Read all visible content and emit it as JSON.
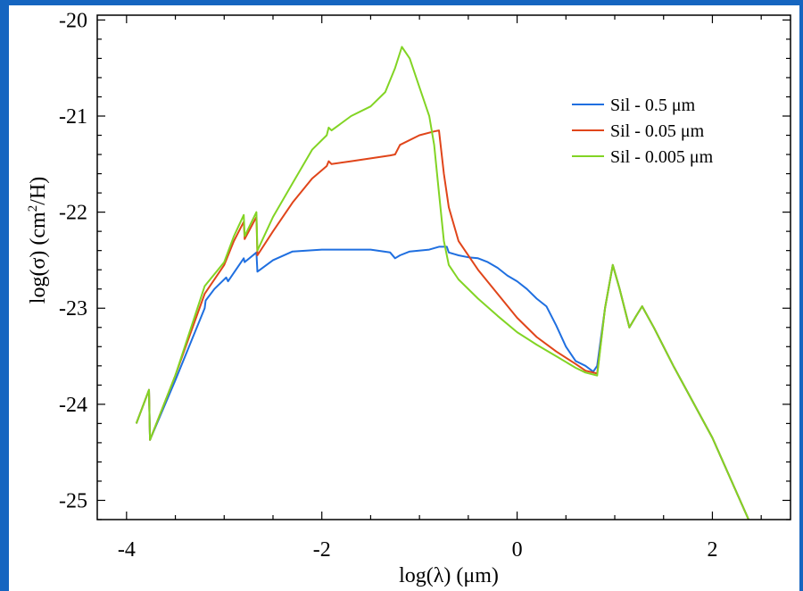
{
  "chart_data": {
    "type": "line",
    "xlabel": "log(λ) (μm)",
    "ylabel_prefix": "log(σ) (cm",
    "ylabel_sup": "2",
    "ylabel_suffix": "/H)",
    "xlim": [
      -4.3,
      2.8
    ],
    "ylim": [
      -25.2,
      -19.95
    ],
    "x_ticks": [
      -4,
      -2,
      0,
      2
    ],
    "x_tick_labels": [
      "-4",
      "-2",
      "0",
      "2"
    ],
    "y_ticks": [
      -20,
      -21,
      -22,
      -23,
      -24,
      -25
    ],
    "y_tick_labels": [
      "-20",
      "-21",
      "-22",
      "-23",
      "-24",
      "-25"
    ],
    "grid": false,
    "legend_position": "top-right",
    "series": [
      {
        "name": "Sil - 0.5 μm",
        "color": "#1f6fe0",
        "points": [
          [
            -3.9,
            -24.2
          ],
          [
            -3.77,
            -23.85
          ],
          [
            -3.76,
            -24.37
          ],
          [
            -3.5,
            -23.75
          ],
          [
            -3.2,
            -23.0
          ],
          [
            -3.19,
            -22.92
          ],
          [
            -3.1,
            -22.8
          ],
          [
            -2.98,
            -22.68
          ],
          [
            -2.96,
            -22.72
          ],
          [
            -2.8,
            -22.48
          ],
          [
            -2.79,
            -22.52
          ],
          [
            -2.67,
            -22.42
          ],
          [
            -2.66,
            -22.62
          ],
          [
            -2.5,
            -22.5
          ],
          [
            -2.3,
            -22.41
          ],
          [
            -2.0,
            -22.39
          ],
          [
            -1.5,
            -22.39
          ],
          [
            -1.3,
            -22.42
          ],
          [
            -1.25,
            -22.48
          ],
          [
            -1.2,
            -22.45
          ],
          [
            -1.1,
            -22.41
          ],
          [
            -0.9,
            -22.39
          ],
          [
            -0.8,
            -22.36
          ],
          [
            -0.72,
            -22.36
          ],
          [
            -0.7,
            -22.42
          ],
          [
            -0.6,
            -22.45
          ],
          [
            -0.5,
            -22.47
          ],
          [
            -0.4,
            -22.48
          ],
          [
            -0.3,
            -22.52
          ],
          [
            -0.2,
            -22.58
          ],
          [
            -0.1,
            -22.66
          ],
          [
            0.0,
            -22.72
          ],
          [
            0.1,
            -22.8
          ],
          [
            0.2,
            -22.9
          ],
          [
            0.3,
            -22.98
          ],
          [
            0.4,
            -23.18
          ],
          [
            0.5,
            -23.4
          ],
          [
            0.6,
            -23.55
          ],
          [
            0.7,
            -23.6
          ],
          [
            0.78,
            -23.66
          ],
          [
            0.82,
            -23.6
          ],
          [
            0.9,
            -23.0
          ],
          [
            0.98,
            -22.55
          ],
          [
            1.05,
            -22.8
          ],
          [
            1.15,
            -23.2
          ],
          [
            1.22,
            -23.08
          ],
          [
            1.28,
            -22.98
          ],
          [
            1.4,
            -23.2
          ],
          [
            1.6,
            -23.6
          ],
          [
            2.0,
            -24.35
          ],
          [
            2.38,
            -25.22
          ]
        ]
      },
      {
        "name": "Sil - 0.05 μm",
        "color": "#e0451a",
        "points": [
          [
            -3.9,
            -24.2
          ],
          [
            -3.77,
            -23.85
          ],
          [
            -3.76,
            -24.37
          ],
          [
            -3.5,
            -23.7
          ],
          [
            -3.2,
            -22.85
          ],
          [
            -3.0,
            -22.55
          ],
          [
            -2.9,
            -22.3
          ],
          [
            -2.8,
            -22.1
          ],
          [
            -2.79,
            -22.28
          ],
          [
            -2.67,
            -22.05
          ],
          [
            -2.66,
            -22.45
          ],
          [
            -2.5,
            -22.2
          ],
          [
            -2.3,
            -21.9
          ],
          [
            -2.1,
            -21.65
          ],
          [
            -1.95,
            -21.52
          ],
          [
            -1.93,
            -21.47
          ],
          [
            -1.9,
            -21.5
          ],
          [
            -1.7,
            -21.47
          ],
          [
            -1.5,
            -21.44
          ],
          [
            -1.3,
            -21.41
          ],
          [
            -1.25,
            -21.4
          ],
          [
            -1.2,
            -21.3
          ],
          [
            -1.0,
            -21.2
          ],
          [
            -0.85,
            -21.16
          ],
          [
            -0.8,
            -21.15
          ],
          [
            -0.75,
            -21.6
          ],
          [
            -0.7,
            -21.95
          ],
          [
            -0.6,
            -22.3
          ],
          [
            -0.4,
            -22.6
          ],
          [
            -0.2,
            -22.85
          ],
          [
            0.0,
            -23.1
          ],
          [
            0.2,
            -23.3
          ],
          [
            0.4,
            -23.45
          ],
          [
            0.6,
            -23.58
          ],
          [
            0.7,
            -23.65
          ],
          [
            0.82,
            -23.68
          ],
          [
            0.9,
            -23.0
          ],
          [
            0.98,
            -22.55
          ],
          [
            1.05,
            -22.8
          ],
          [
            1.15,
            -23.2
          ],
          [
            1.22,
            -23.08
          ],
          [
            1.28,
            -22.98
          ],
          [
            1.4,
            -23.2
          ],
          [
            1.6,
            -23.6
          ],
          [
            2.0,
            -24.35
          ],
          [
            2.38,
            -25.22
          ]
        ]
      },
      {
        "name": "Sil - 0.005 μm",
        "color": "#82d424",
        "points": [
          [
            -3.9,
            -24.2
          ],
          [
            -3.77,
            -23.85
          ],
          [
            -3.76,
            -24.37
          ],
          [
            -3.5,
            -23.7
          ],
          [
            -3.2,
            -22.77
          ],
          [
            -3.0,
            -22.52
          ],
          [
            -2.9,
            -22.25
          ],
          [
            -2.8,
            -22.03
          ],
          [
            -2.79,
            -22.25
          ],
          [
            -2.67,
            -22.0
          ],
          [
            -2.66,
            -22.4
          ],
          [
            -2.5,
            -22.05
          ],
          [
            -2.3,
            -21.7
          ],
          [
            -2.1,
            -21.35
          ],
          [
            -1.95,
            -21.2
          ],
          [
            -1.93,
            -21.12
          ],
          [
            -1.9,
            -21.15
          ],
          [
            -1.7,
            -21.0
          ],
          [
            -1.5,
            -20.9
          ],
          [
            -1.35,
            -20.75
          ],
          [
            -1.25,
            -20.5
          ],
          [
            -1.18,
            -20.28
          ],
          [
            -1.1,
            -20.4
          ],
          [
            -1.0,
            -20.7
          ],
          [
            -0.9,
            -21.0
          ],
          [
            -0.85,
            -21.3
          ],
          [
            -0.8,
            -21.8
          ],
          [
            -0.75,
            -22.3
          ],
          [
            -0.7,
            -22.55
          ],
          [
            -0.6,
            -22.7
          ],
          [
            -0.4,
            -22.9
          ],
          [
            -0.2,
            -23.08
          ],
          [
            0.0,
            -23.25
          ],
          [
            0.2,
            -23.38
          ],
          [
            0.4,
            -23.5
          ],
          [
            0.6,
            -23.62
          ],
          [
            0.7,
            -23.67
          ],
          [
            0.82,
            -23.7
          ],
          [
            0.9,
            -23.0
          ],
          [
            0.98,
            -22.55
          ],
          [
            1.05,
            -22.8
          ],
          [
            1.15,
            -23.2
          ],
          [
            1.22,
            -23.08
          ],
          [
            1.28,
            -22.98
          ],
          [
            1.4,
            -23.2
          ],
          [
            1.6,
            -23.6
          ],
          [
            2.0,
            -24.35
          ],
          [
            2.38,
            -25.22
          ]
        ]
      }
    ]
  }
}
